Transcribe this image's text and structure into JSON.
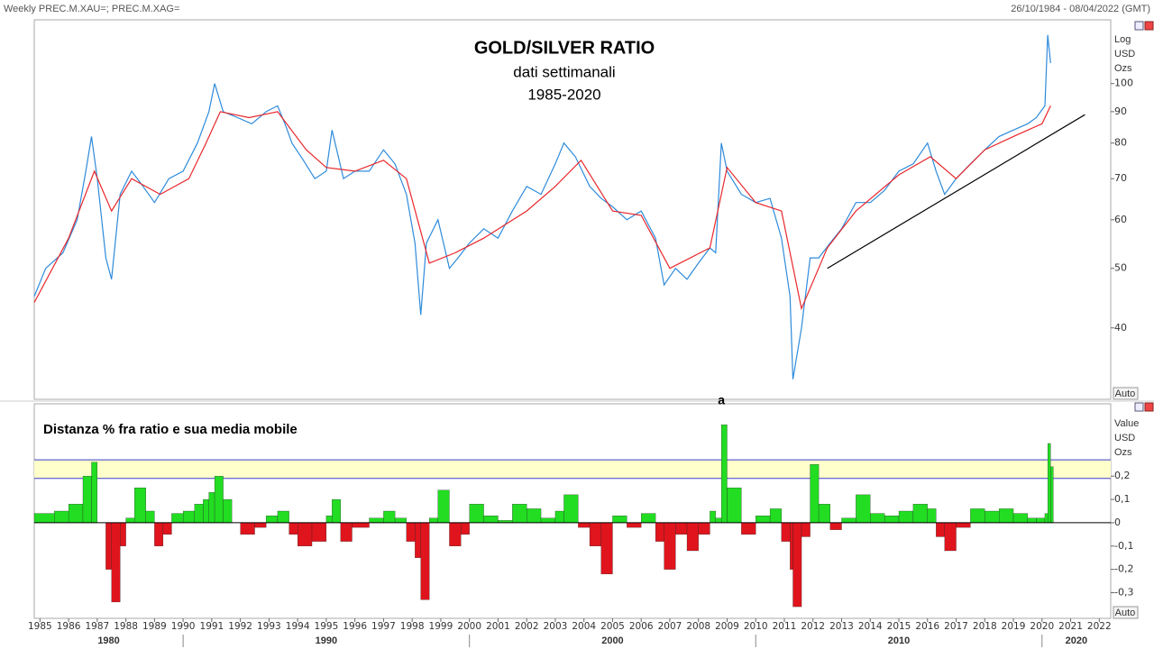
{
  "header": {
    "left": "Weekly PREC.M.XAU=; PREC.M.XAG=",
    "right": "26/10/1984 - 08/04/2022 (GMT)"
  },
  "chart_data": [
    {
      "type": "line",
      "title": "GOLD/SILVER RATIO",
      "subtitle": "dati settimanali",
      "period": "1985-2020",
      "log_scale": true,
      "xlim": [
        1984.8,
        2022.4
      ],
      "ylim": [
        30.6,
        127
      ],
      "yticks": [
        40,
        50,
        60,
        70,
        80,
        90,
        100
      ],
      "axis_units": [
        "Log",
        "USD",
        "Ozs"
      ],
      "auto_button": "Auto",
      "series": [
        {
          "color": "#2e8bdb",
          "x": [
            1984.8,
            1985.2,
            1985.8,
            1986.3,
            1986.6,
            1986.8,
            1987.0,
            1987.3,
            1987.5,
            1987.8,
            1988.2,
            1988.6,
            1989.0,
            1989.5,
            1990.0,
            1990.5,
            1990.9,
            1991.1,
            1991.4,
            1991.9,
            1992.4,
            1992.9,
            1993.3,
            1993.6,
            1993.8,
            1994.2,
            1994.6,
            1995.0,
            1995.2,
            1995.6,
            1996.0,
            1996.5,
            1997.0,
            1997.4,
            1997.8,
            1998.1,
            1998.3,
            1998.5,
            1998.9,
            1999.3,
            1999.6,
            2000.0,
            2000.5,
            2001.0,
            2001.5,
            2002.0,
            2002.5,
            2003.0,
            2003.3,
            2003.7,
            2004.2,
            2004.6,
            2005.0,
            2005.5,
            2006.0,
            2006.5,
            2006.8,
            2007.2,
            2007.6,
            2008.0,
            2008.4,
            2008.6,
            2008.8,
            2009.0,
            2009.5,
            2010.0,
            2010.5,
            2010.9,
            2011.2,
            2011.3,
            2011.6,
            2011.9,
            2012.2,
            2012.6,
            2013.0,
            2013.5,
            2014.0,
            2014.5,
            2015.0,
            2015.5,
            2016.0,
            2016.3,
            2016.6,
            2017.0,
            2017.5,
            2018.0,
            2018.5,
            2019.0,
            2019.5,
            2019.8,
            2020.1,
            2020.2,
            2020.3
          ],
          "values": [
            45,
            50,
            53,
            60,
            72,
            82,
            70,
            52,
            48,
            66,
            72,
            68,
            64,
            70,
            72,
            80,
            90,
            100,
            90,
            88,
            86,
            90,
            92,
            85,
            80,
            75,
            70,
            72,
            84,
            70,
            72,
            72,
            78,
            74,
            66,
            55,
            42,
            55,
            60,
            50,
            52,
            55,
            58,
            56,
            62,
            68,
            66,
            74,
            80,
            76,
            68,
            65,
            63,
            60,
            62,
            56,
            47,
            50,
            48,
            51,
            54,
            53,
            80,
            72,
            66,
            64,
            65,
            56,
            45,
            33,
            40,
            52,
            52,
            55,
            58,
            64,
            64,
            67,
            72,
            74,
            80,
            72,
            66,
            70,
            74,
            78,
            82,
            84,
            86,
            88,
            92,
            120,
            108
          ]
        },
        {
          "color": "#e8272b",
          "x": [
            1984.8,
            1986.0,
            1986.9,
            1987.5,
            1988.2,
            1989.2,
            1990.2,
            1990.8,
            1991.3,
            1992.3,
            1993.3,
            1994.3,
            1995.0,
            1996.0,
            1997.0,
            1997.8,
            1998.6,
            1999.5,
            2000.5,
            2002.0,
            2003.0,
            2003.9,
            2005.0,
            2006.0,
            2007.0,
            2008.4,
            2009.0,
            2010.0,
            2010.9,
            2011.6,
            2012.5,
            2013.5,
            2015.0,
            2016.1,
            2017.0,
            2018.0,
            2019.0,
            2020.0,
            2020.3
          ],
          "values": [
            44,
            56,
            72,
            62,
            70,
            66,
            70,
            80,
            90,
            88,
            90,
            78,
            73,
            72,
            75,
            70,
            51,
            53,
            56,
            62,
            68,
            75,
            62,
            61,
            50,
            54,
            73,
            64,
            62,
            43,
            54,
            62,
            71,
            76,
            70,
            78,
            82,
            86,
            92
          ]
        }
      ],
      "trendline": {
        "color": "#000000",
        "x": [
          2012.5,
          2021.5
        ],
        "values": [
          50,
          89
        ]
      }
    },
    {
      "type": "bar",
      "title": "Distanza % fra ratio e sua media mobile",
      "xlim": [
        1984.8,
        2022.4
      ],
      "ylim": [
        -0.41,
        0.51
      ],
      "yticks": [
        {
          "value": -0.3,
          "label": "-0,3"
        },
        {
          "value": -0.2,
          "label": "-0,2"
        },
        {
          "value": -0.1,
          "label": "-0,1"
        },
        0,
        {
          "value": 0.1,
          "label": "0,1"
        },
        {
          "value": 0.2,
          "label": "0,2"
        }
      ],
      "axis_units": [
        "Value",
        "USD",
        "Ozs"
      ],
      "auto_button": "Auto",
      "positive_color": "#22dd22",
      "negative_color": "#e0141c",
      "bands": [
        0.19,
        0.27
      ],
      "band_color": "#ffffcc",
      "band_line_color": "#3b3bd0",
      "annotation": {
        "text": "a",
        "x": 2008.8
      },
      "x": [
        1984.8,
        1985.5,
        1986.0,
        1986.5,
        1986.8,
        1987.0,
        1987.3,
        1987.5,
        1987.8,
        1988.0,
        1988.3,
        1988.7,
        1989.0,
        1989.3,
        1989.6,
        1990.0,
        1990.4,
        1990.7,
        1990.9,
        1991.1,
        1991.4,
        1991.7,
        1992.0,
        1992.5,
        1992.9,
        1993.3,
        1993.7,
        1994.0,
        1994.5,
        1995.0,
        1995.2,
        1995.5,
        1995.9,
        1996.5,
        1997.0,
        1997.4,
        1997.8,
        1998.1,
        1998.3,
        1998.6,
        1998.9,
        1999.3,
        1999.7,
        2000.0,
        2000.5,
        2001.0,
        2001.5,
        2002.0,
        2002.5,
        2003.0,
        2003.3,
        2003.8,
        2004.2,
        2004.6,
        2005.0,
        2005.5,
        2006.0,
        2006.5,
        2006.8,
        2007.2,
        2007.6,
        2008.0,
        2008.4,
        2008.6,
        2008.8,
        2009.0,
        2009.5,
        2010.0,
        2010.5,
        2010.9,
        2011.2,
        2011.3,
        2011.6,
        2011.9,
        2012.2,
        2012.6,
        2013.0,
        2013.5,
        2014.0,
        2014.5,
        2015.0,
        2015.5,
        2016.0,
        2016.3,
        2016.6,
        2017.0,
        2017.5,
        2018.0,
        2018.5,
        2019.0,
        2019.5,
        2019.8,
        2020.1,
        2020.2,
        2020.3
      ],
      "values": [
        0.04,
        0.05,
        0.08,
        0.2,
        0.26,
        0,
        -0.2,
        -0.34,
        -0.1,
        0.02,
        0.15,
        0.05,
        -0.1,
        -0.05,
        0.04,
        0.05,
        0.08,
        0.1,
        0.13,
        0.2,
        0.1,
        0,
        -0.05,
        -0.02,
        0.03,
        0.05,
        -0.05,
        -0.1,
        -0.08,
        0.03,
        0.1,
        -0.08,
        -0.02,
        0.02,
        0.05,
        0.02,
        -0.08,
        -0.15,
        -0.33,
        0.02,
        0.14,
        -0.1,
        -0.05,
        0.08,
        0.03,
        0.01,
        0.08,
        0.06,
        0.02,
        0.05,
        0.12,
        -0.02,
        -0.1,
        -0.22,
        0.03,
        -0.02,
        0.04,
        -0.08,
        -0.2,
        -0.05,
        -0.12,
        -0.05,
        0.05,
        0.02,
        0.42,
        0.15,
        -0.05,
        0.03,
        0.06,
        -0.08,
        -0.2,
        -0.36,
        -0.06,
        0.25,
        0.08,
        -0.03,
        0.02,
        0.12,
        0.04,
        0.03,
        0.05,
        0.08,
        0.06,
        -0.06,
        -0.12,
        -0.02,
        0.06,
        0.05,
        0.06,
        0.04,
        0.02,
        0.02,
        0.04,
        0.34,
        0.24
      ],
      "xticks": [
        1985,
        1986,
        1987,
        1988,
        1989,
        1990,
        1991,
        1992,
        1993,
        1994,
        1995,
        1996,
        1997,
        1998,
        1999,
        2000,
        2001,
        2002,
        2003,
        2004,
        2005,
        2006,
        2007,
        2008,
        2009,
        2010,
        2011,
        2012,
        2013,
        2014,
        2015,
        2016,
        2017,
        2018,
        2019,
        2020,
        2021,
        2022
      ],
      "decades": [
        1980,
        1990,
        2000,
        2010,
        2020
      ]
    }
  ]
}
